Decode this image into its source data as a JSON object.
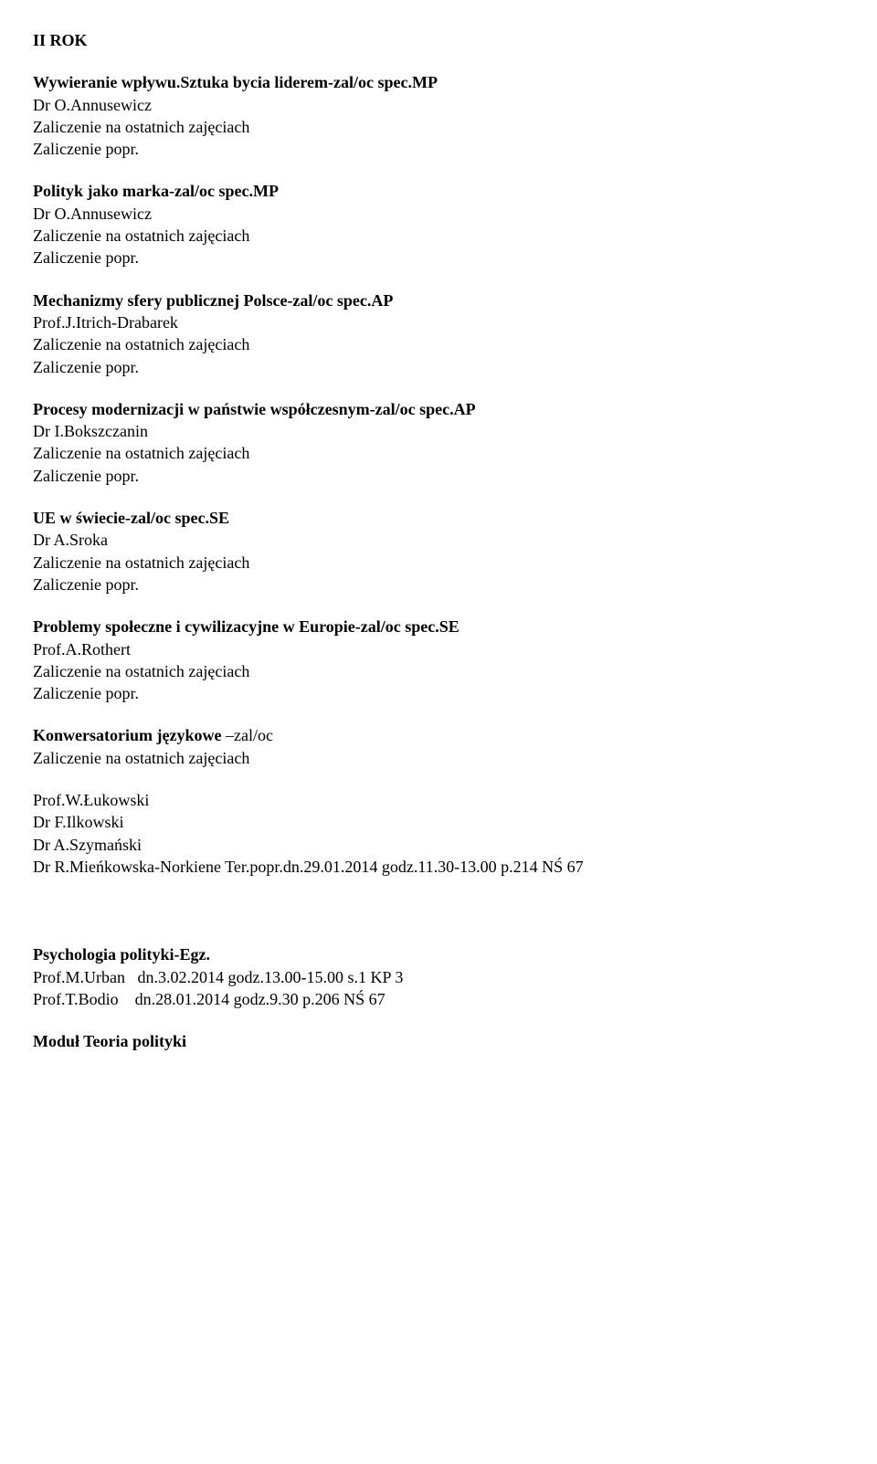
{
  "header": {
    "title": "II ROK"
  },
  "courses": [
    {
      "title": "Wywieranie wpływu.Sztuka bycia liderem-zal/oc spec.MP",
      "instructor": "Dr O.Annusewicz",
      "line1": "Zaliczenie na ostatnich zajęciach",
      "line2": "Zaliczenie popr."
    },
    {
      "title": "Polityk jako marka-zal/oc spec.MP",
      "instructor": "Dr O.Annusewicz",
      "line1": "Zaliczenie na ostatnich zajęciach",
      "line2": "Zaliczenie popr."
    },
    {
      "title": "Mechanizmy sfery publicznej Polsce-zal/oc spec.AP",
      "instructor": "Prof.J.Itrich-Drabarek",
      "line1": "Zaliczenie na ostatnich zajęciach",
      "line2": "Zaliczenie popr."
    },
    {
      "title": "Procesy modernizacji w państwie współczesnym-zal/oc spec.AP",
      "instructor": "Dr I.Bokszczanin",
      "line1": "Zaliczenie na ostatnich zajęciach",
      "line2": "Zaliczenie popr."
    },
    {
      "title": "UE w świecie-zal/oc spec.SE",
      "instructor": "Dr A.Sroka",
      "line1": "Zaliczenie na ostatnich zajęciach",
      "line2": "Zaliczenie popr."
    },
    {
      "title": "Problemy społeczne i cywilizacyjne w Europie-zal/oc spec.SE",
      "instructor": "Prof.A.Rothert",
      "line1": "Zaliczenie na ostatnich zajęciach",
      "line2": "Zaliczenie popr."
    }
  ],
  "konwersatorium": {
    "title_main": "Konwersatorium językowe",
    "title_suffix": " –zal/oc",
    "line1": "Zaliczenie na ostatnich zajęciach"
  },
  "instructors_list": {
    "p1": "Prof.W.Łukowski",
    "p2": "Dr F.Ilkowski",
    "p3": "Dr A.Szymański",
    "p4": "Dr R.Mieńkowska-Norkiene  Ter.popr.dn.29.01.2014 godz.11.30-13.00 p.214  NŚ 67"
  },
  "psychologia": {
    "title": "Psychologia polityki-Egz.",
    "line1": "Prof.M.Urban   dn.3.02.2014 godz.13.00-15.00 s.1 KP 3",
    "line2": "Prof.T.Bodio    dn.28.01.2014 godz.9.30 p.206 NŚ 67"
  },
  "modul": {
    "title": "Moduł Teoria polityki"
  }
}
